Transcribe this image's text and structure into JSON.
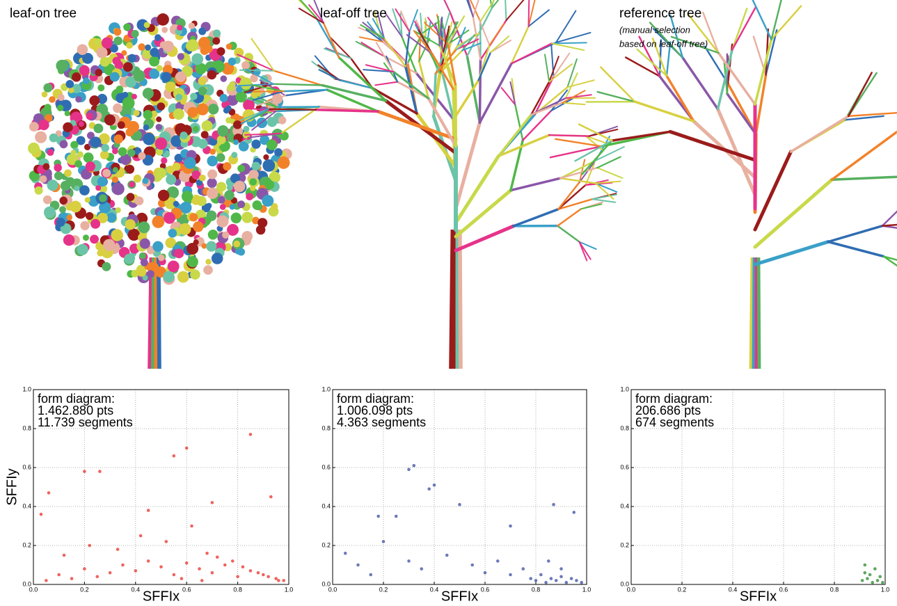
{
  "chart_data": [
    {
      "type": "scatter",
      "title": "leaf-on tree",
      "annotation": [
        "form diagram:",
        "1.462.880 pts",
        "11.739 segments"
      ],
      "xlabel": "SFFIx",
      "ylabel": "SFFIy",
      "color": "#e8302a",
      "grid": true,
      "xlim": [
        0,
        1
      ],
      "ylim": [
        0,
        1
      ],
      "xticks": [
        {
          "value": 0,
          "label": "0.0"
        },
        0.2,
        0.4,
        0.6,
        0.8,
        {
          "value": 1,
          "label": "1.0"
        }
      ],
      "yticks": [
        {
          "value": 0,
          "label": "0.0"
        },
        0.2,
        0.4,
        0.6,
        0.8,
        {
          "value": 1,
          "label": "1.0"
        }
      ],
      "x": [
        0.05,
        0.1,
        0.15,
        0.2,
        0.25,
        0.3,
        0.35,
        0.4,
        0.45,
        0.5,
        0.55,
        0.6,
        0.65,
        0.7,
        0.75,
        0.8,
        0.85,
        0.9,
        0.95,
        0.98,
        0.12,
        0.22,
        0.33,
        0.42,
        0.52,
        0.62,
        0.68,
        0.72,
        0.78,
        0.82,
        0.88,
        0.92,
        0.96,
        0.85,
        0.6,
        0.55,
        0.2,
        0.26,
        0.06,
        0.03,
        0.45,
        0.7,
        0.93,
        0.58,
        0.66
      ],
      "values": [
        0.02,
        0.05,
        0.03,
        0.08,
        0.04,
        0.06,
        0.1,
        0.07,
        0.12,
        0.09,
        0.05,
        0.11,
        0.08,
        0.06,
        0.1,
        0.04,
        0.07,
        0.05,
        0.03,
        0.02,
        0.15,
        0.2,
        0.18,
        0.25,
        0.22,
        0.3,
        0.16,
        0.14,
        0.12,
        0.09,
        0.06,
        0.04,
        0.02,
        0.77,
        0.7,
        0.66,
        0.58,
        0.58,
        0.47,
        0.36,
        0.38,
        0.42,
        0.45,
        0.03,
        0.02
      ]
    },
    {
      "type": "scatter",
      "title": "leaf-off tree",
      "annotation": [
        "form diagram:",
        "1.006.098 pts",
        "4.363 segments"
      ],
      "xlabel": "SFFIx",
      "color": "#3a4ea0",
      "grid": true,
      "xlim": [
        0,
        1
      ],
      "ylim": [
        0,
        1
      ],
      "xticks": [
        {
          "value": 0,
          "label": "0.0"
        },
        0.2,
        0.4,
        0.6,
        0.8,
        {
          "value": 1,
          "label": "1.0"
        }
      ],
      "yticks": [
        {
          "value": 0,
          "label": "0.0"
        },
        0.2,
        0.4,
        0.6,
        0.8,
        {
          "value": 1,
          "label": "1.0"
        }
      ],
      "x": [
        0.05,
        0.1,
        0.15,
        0.2,
        0.3,
        0.35,
        0.45,
        0.55,
        0.6,
        0.65,
        0.7,
        0.75,
        0.78,
        0.8,
        0.82,
        0.84,
        0.86,
        0.88,
        0.9,
        0.92,
        0.94,
        0.96,
        0.98,
        0.85,
        0.9,
        0.32,
        0.3,
        0.4,
        0.38,
        0.5,
        0.87,
        0.95,
        0.25,
        0.18,
        0.7
      ],
      "values": [
        0.16,
        0.1,
        0.05,
        0.22,
        0.12,
        0.08,
        0.15,
        0.1,
        0.06,
        0.12,
        0.05,
        0.08,
        0.03,
        0.02,
        0.05,
        0.01,
        0.03,
        0.02,
        0.04,
        0.01,
        0.03,
        0.02,
        0.01,
        0.12,
        0.08,
        0.61,
        0.59,
        0.51,
        0.49,
        0.41,
        0.41,
        0.37,
        0.35,
        0.35,
        0.3
      ]
    },
    {
      "type": "scatter",
      "title": "reference tree",
      "subtitle": [
        "(manual selection",
        "based on leaf-off tree)"
      ],
      "annotation": [
        "form diagram:",
        "206.686 pts",
        "674 segments"
      ],
      "xlabel": "SFFIx",
      "color": "#2a8a2a",
      "grid": true,
      "xlim": [
        0,
        1
      ],
      "ylim": [
        0,
        1
      ],
      "xticks": [
        {
          "value": 0,
          "label": "0.0"
        },
        0.2,
        0.4,
        0.6,
        0.8,
        {
          "value": 1,
          "label": "1.0"
        }
      ],
      "yticks": [
        {
          "value": 0,
          "label": "0.0"
        },
        0.2,
        0.4,
        0.6,
        0.8,
        {
          "value": 1,
          "label": "1.0"
        }
      ],
      "x": [
        0.91,
        0.92,
        0.93,
        0.94,
        0.95,
        0.96,
        0.97,
        0.98,
        0.99,
        0.92
      ],
      "values": [
        0.02,
        0.1,
        0.03,
        0.05,
        0.01,
        0.08,
        0.02,
        0.04,
        0.01,
        0.06
      ]
    }
  ]
}
